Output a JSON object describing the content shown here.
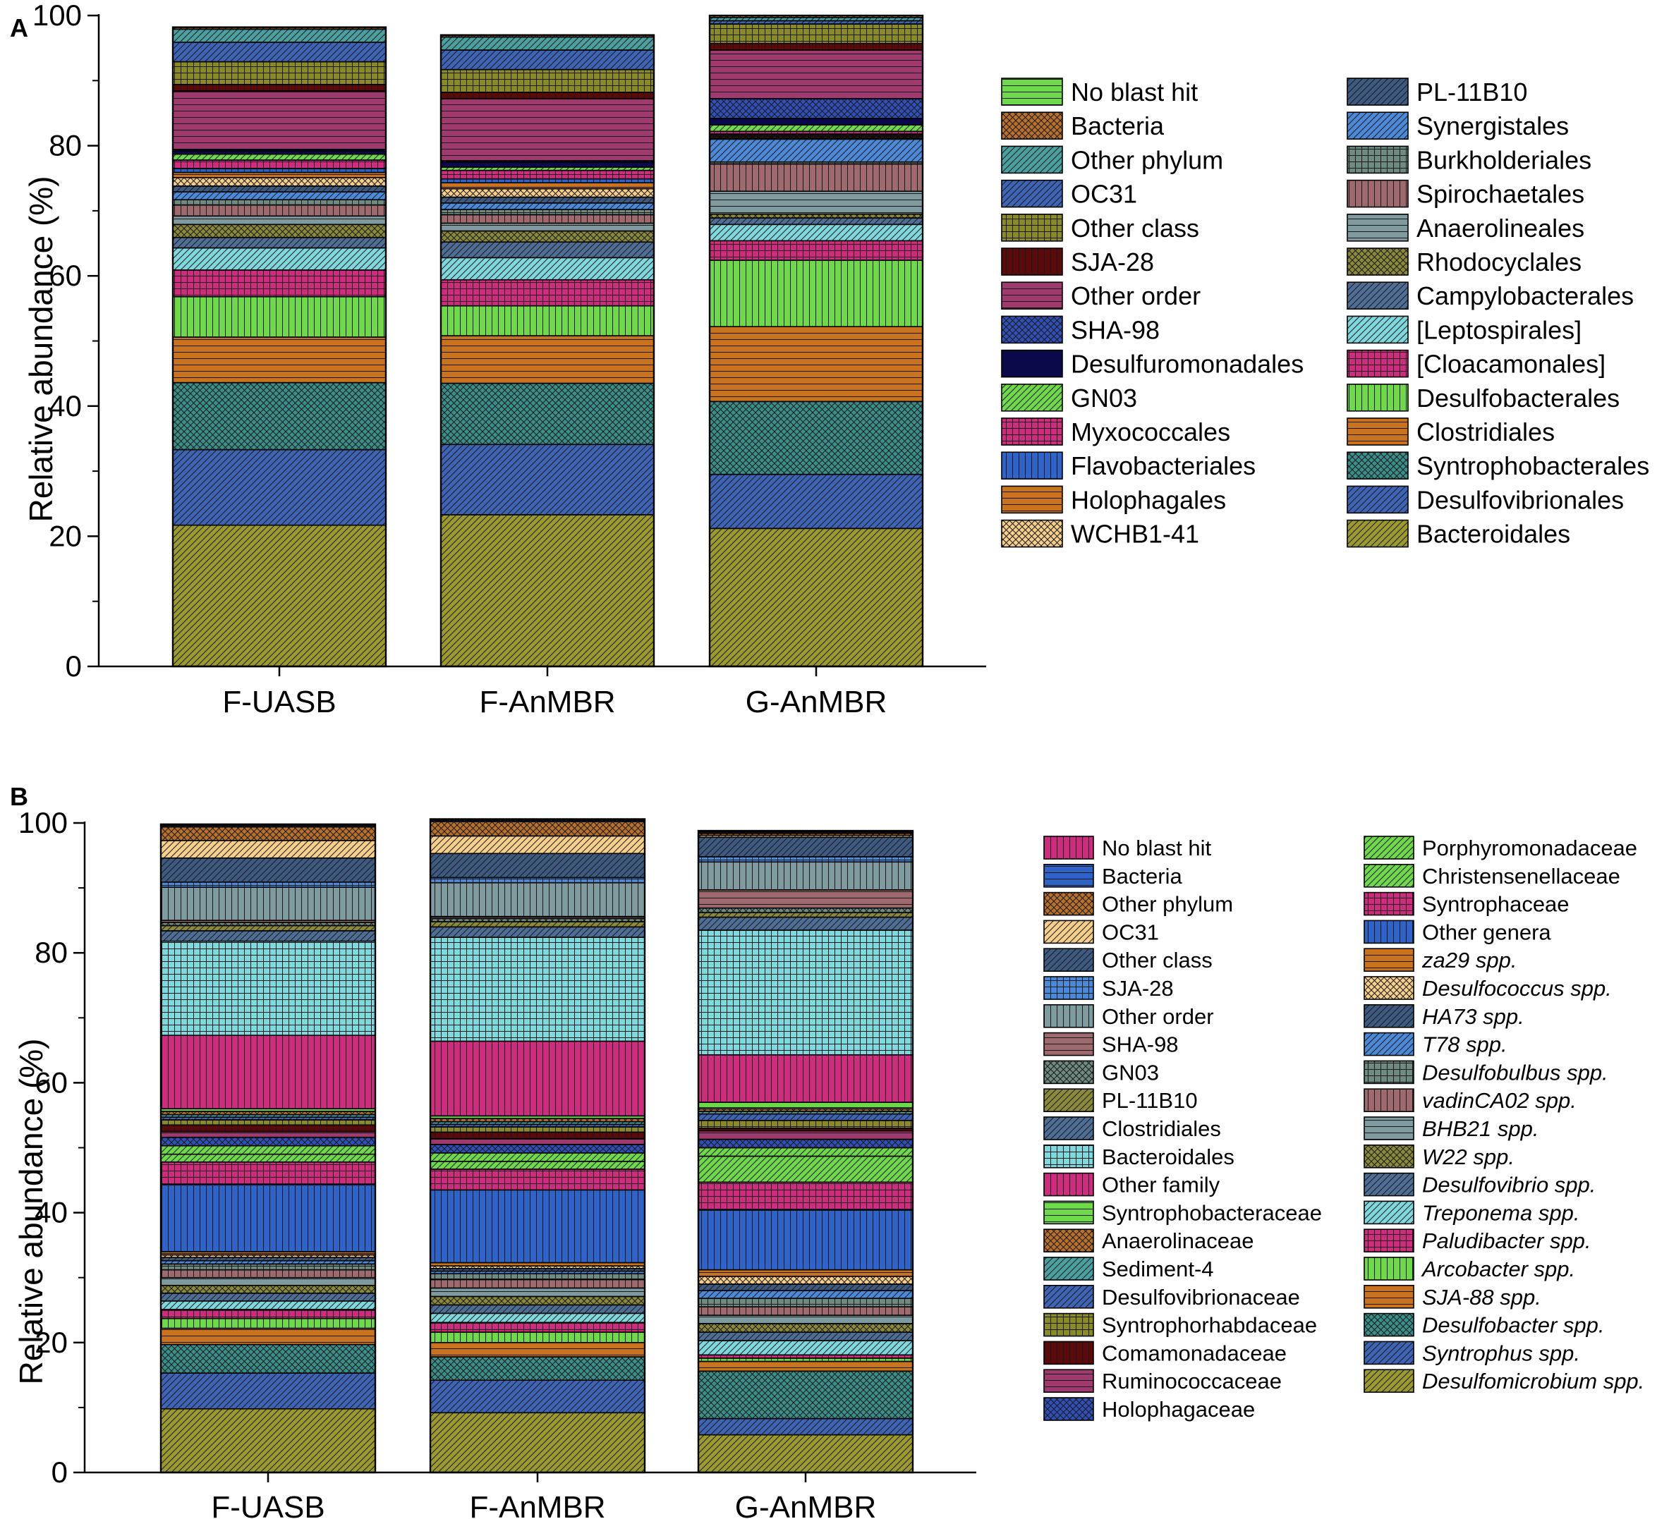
{
  "chart_data": [
    {
      "panel": "A",
      "type": "bar",
      "stacked": true,
      "ylabel": "Relative abundance (%)",
      "ylim": [
        0,
        100
      ],
      "yticks": [
        0,
        20,
        40,
        60,
        80,
        100
      ],
      "categories": [
        "F-UASB",
        "F-AnMBR",
        "G-AnMBR"
      ],
      "legend_position": "right",
      "series": [
        {
          "name": "Bacteroidales",
          "color": "#9c9a2e",
          "pattern": "diag",
          "values": [
            21.7,
            23.3,
            21.2
          ]
        },
        {
          "name": "Desulfovibrionales",
          "color": "#3f64b5",
          "pattern": "diag",
          "values": [
            11.6,
            10.8,
            8.3
          ]
        },
        {
          "name": "Syntrophobacterales",
          "color": "#3a8f8a",
          "pattern": "cross",
          "values": [
            10.3,
            9.4,
            11.2
          ]
        },
        {
          "name": "Clostridiales",
          "color": "#c9731f",
          "pattern": "hline",
          "values": [
            7.0,
            7.3,
            11.5
          ]
        },
        {
          "name": "Desulfobacterales",
          "color": "#6fd84b",
          "pattern": "vline",
          "values": [
            6.2,
            4.6,
            10.2
          ]
        },
        {
          "name": "[Cloacamonales]",
          "color": "#cc2d7c",
          "pattern": "grid",
          "values": [
            4.1,
            4.0,
            3.0
          ]
        },
        {
          "name": "[Leptospirales]",
          "color": "#7fd8de",
          "pattern": "diag",
          "values": [
            3.4,
            3.4,
            2.5
          ]
        },
        {
          "name": "Campylobacterales",
          "color": "#4f6e96",
          "pattern": "diag",
          "values": [
            1.6,
            2.4,
            1.0
          ]
        },
        {
          "name": "Rhodocyclales",
          "color": "#8a8a3a",
          "pattern": "cross",
          "values": [
            2.0,
            1.7,
            0.6
          ]
        },
        {
          "name": "Anaerolineales",
          "color": "#7f9ba0",
          "pattern": "hline",
          "values": [
            1.3,
            1.2,
            3.5
          ]
        },
        {
          "name": "Spirochaetales",
          "color": "#9e6a6e",
          "pattern": "vline",
          "values": [
            1.7,
            1.3,
            4.2
          ]
        },
        {
          "name": "Burkholderiales",
          "color": "#6f8a80",
          "pattern": "grid",
          "values": [
            0.8,
            0.8,
            0.3
          ]
        },
        {
          "name": "Synergistales",
          "color": "#4a8ad8",
          "pattern": "diag",
          "values": [
            1.2,
            1.0,
            3.5
          ]
        },
        {
          "name": "PL-11B10",
          "color": "#3f5a80",
          "pattern": "diag",
          "values": [
            0.9,
            0.9,
            0.2
          ]
        },
        {
          "name": "WCHB1-41",
          "color": "#f7cf8a",
          "pattern": "cross",
          "values": [
            1.3,
            1.3,
            0.2
          ]
        },
        {
          "name": "Holophagales",
          "color": "#c9731f",
          "pattern": "hline",
          "values": [
            0.8,
            0.9,
            0.2
          ]
        },
        {
          "name": "Flavobacteriales",
          "color": "#2f63c8",
          "pattern": "vline",
          "values": [
            0.6,
            0.6,
            0.2
          ]
        },
        {
          "name": "Myxococcales",
          "color": "#cc2d7c",
          "pattern": "grid",
          "values": [
            1.3,
            1.3,
            0.4
          ]
        },
        {
          "name": "GN03",
          "color": "#6fd84b",
          "pattern": "diag",
          "values": [
            0.9,
            0.5,
            1.0
          ]
        },
        {
          "name": "Desulfuromonadales",
          "color": "#0a0a4a",
          "pattern": "solid",
          "values": [
            0.5,
            0.8,
            1.0
          ]
        },
        {
          "name": "SHA-98",
          "color": "#3050b8",
          "pattern": "cross",
          "values": [
            0.2,
            0.2,
            3.0
          ]
        },
        {
          "name": "Other order",
          "color": "#9e3a6e",
          "pattern": "hline",
          "values": [
            9.0,
            9.5,
            7.5
          ]
        },
        {
          "name": "SJA-28",
          "color": "#5a0a0a",
          "pattern": "vline",
          "values": [
            1.0,
            1.0,
            1.0
          ]
        },
        {
          "name": "Other class",
          "color": "#8a8a2a",
          "pattern": "grid",
          "values": [
            3.5,
            3.5,
            3.0
          ]
        },
        {
          "name": "OC31",
          "color": "#3f64b5",
          "pattern": "diag",
          "values": [
            3.0,
            3.0,
            0.5
          ]
        },
        {
          "name": "Other phylum",
          "color": "#4aa0a0",
          "pattern": "diag",
          "values": [
            2.0,
            2.0,
            0.5
          ]
        },
        {
          "name": "Bacteria",
          "color": "#b8702a",
          "pattern": "cross",
          "values": [
            0.3,
            0.3,
            0.3
          ]
        },
        {
          "name": "No blast hit",
          "color": "#6fd84b",
          "pattern": "hline",
          "values": [
            0.0,
            0.0,
            0.0
          ]
        }
      ],
      "legend_columns": [
        [
          "No blast hit",
          "Bacteria",
          "Other phylum",
          "OC31",
          "Other class",
          "SJA-28",
          "Other order",
          "SHA-98",
          "Desulfuromonadales",
          "GN03",
          "Myxococcales",
          "Flavobacteriales",
          "Holophagales",
          "WCHB1-41"
        ],
        [
          "PL-11B10",
          "Synergistales",
          "Burkholderiales",
          "Spirochaetales",
          "Anaerolineales",
          "Rhodocyclales",
          "Campylobacterales",
          "[Leptospirales]",
          "[Cloacamonales]",
          "Desulfobacterales",
          "Clostridiales",
          "Syntrophobacterales",
          "Desulfovibrionales",
          "Bacteroidales"
        ]
      ]
    },
    {
      "panel": "B",
      "type": "bar",
      "stacked": true,
      "ylabel": "Relative abundance (%)",
      "ylim": [
        0,
        100
      ],
      "yticks": [
        0,
        20,
        40,
        60,
        80,
        100
      ],
      "categories": [
        "F-UASB",
        "F-AnMBR",
        "G-AnMBR"
      ],
      "legend_position": "right",
      "series": [
        {
          "name": "Desulfomicrobium spp.",
          "color": "#9c9a2e",
          "pattern": "diag",
          "values": [
            9.8,
            9.2,
            5.8
          ]
        },
        {
          "name": "Syntrophus spp.",
          "color": "#3f64b5",
          "pattern": "diag",
          "values": [
            5.5,
            5.0,
            2.5
          ]
        },
        {
          "name": "Desulfobacter spp.",
          "color": "#3a8f8a",
          "pattern": "cross",
          "values": [
            4.4,
            3.6,
            7.3
          ]
        },
        {
          "name": "SJA-88 spp.",
          "color": "#c9731f",
          "pattern": "hline",
          "values": [
            2.5,
            2.2,
            1.5
          ]
        },
        {
          "name": "Arcobacter spp.",
          "color": "#6fd84b",
          "pattern": "vline",
          "values": [
            1.5,
            1.6,
            0.5
          ]
        },
        {
          "name": "Paludibacter spp.",
          "color": "#cc2d7c",
          "pattern": "grid",
          "values": [
            1.4,
            1.5,
            0.5
          ]
        },
        {
          "name": "Treponema spp.",
          "color": "#7fd8de",
          "pattern": "diag",
          "values": [
            1.3,
            1.4,
            2.2
          ]
        },
        {
          "name": "Desulfovibrio spp.",
          "color": "#4f6e96",
          "pattern": "diag",
          "values": [
            1.2,
            1.3,
            1.3
          ]
        },
        {
          "name": "W22 spp.",
          "color": "#8a8a3a",
          "pattern": "cross",
          "values": [
            1.2,
            1.3,
            1.3
          ]
        },
        {
          "name": "BHB21 spp.",
          "color": "#7f9ba0",
          "pattern": "hline",
          "values": [
            1.2,
            1.3,
            1.3
          ]
        },
        {
          "name": "vadinCA02 spp.",
          "color": "#9e6a6e",
          "pattern": "vline",
          "values": [
            1.2,
            1.3,
            1.3
          ]
        },
        {
          "name": "Desulfobulbus spp.",
          "color": "#6f8a80",
          "pattern": "grid",
          "values": [
            0.9,
            0.9,
            1.3
          ]
        },
        {
          "name": "T78 spp.",
          "color": "#4a8ad8",
          "pattern": "diag",
          "values": [
            0.5,
            0.4,
            1.2
          ]
        },
        {
          "name": "HA73 spp.",
          "color": "#3f5a80",
          "pattern": "diag",
          "values": [
            0.5,
            0.4,
            1.0
          ]
        },
        {
          "name": "Desulfococcus spp.",
          "color": "#f7cf8a",
          "pattern": "cross",
          "values": [
            0.4,
            0.4,
            1.2
          ]
        },
        {
          "name": "za29 spp.",
          "color": "#c9731f",
          "pattern": "hline",
          "values": [
            0.5,
            0.5,
            1.0
          ]
        },
        {
          "name": "Other genera",
          "color": "#2f63c8",
          "pattern": "vline",
          "values": [
            10.3,
            11.2,
            9.2
          ]
        },
        {
          "name": "Syntrophaceae",
          "color": "#cc2d7c",
          "pattern": "grid",
          "values": [
            3.5,
            3.2,
            4.3
          ]
        },
        {
          "name": "Christensenellaceae",
          "color": "#6fd84b",
          "pattern": "diag",
          "values": [
            1.2,
            1.2,
            4.0
          ]
        },
        {
          "name": "Porphyromonadaceae",
          "color": "#6fd84b",
          "pattern": "diag",
          "values": [
            1.3,
            1.3,
            1.3
          ]
        },
        {
          "name": "Holophagaceae",
          "color": "#3050b8",
          "pattern": "cross",
          "values": [
            1.3,
            1.3,
            1.3
          ]
        },
        {
          "name": "Ruminococcaceae",
          "color": "#9e3a6e",
          "pattern": "hline",
          "values": [
            0.9,
            0.9,
            1.3
          ]
        },
        {
          "name": "Comamonadaceae",
          "color": "#5a0a0a",
          "pattern": "vline",
          "values": [
            1.0,
            1.0,
            0.4
          ]
        },
        {
          "name": "Syntrophorhabdaceae",
          "color": "#8a8a2a",
          "pattern": "grid",
          "values": [
            0.8,
            0.8,
            1.2
          ]
        },
        {
          "name": "Desulfovibrionaceae",
          "color": "#3f64b5",
          "pattern": "diag",
          "values": [
            0.4,
            0.4,
            1.0
          ]
        },
        {
          "name": "Sediment-4",
          "color": "#4aa0a0",
          "pattern": "diag",
          "values": [
            0.4,
            0.4,
            0.4
          ]
        },
        {
          "name": "Anaerolinaceae",
          "color": "#b8702a",
          "pattern": "cross",
          "values": [
            0.5,
            0.5,
            0.4
          ]
        },
        {
          "name": "Syntrophobacteraceae",
          "color": "#6fd84b",
          "pattern": "hline",
          "values": [
            0.4,
            0.4,
            1.0
          ]
        },
        {
          "name": "Other family",
          "color": "#cc2d7c",
          "pattern": "vline",
          "values": [
            11.3,
            11.5,
            7.3
          ]
        },
        {
          "name": "Bacteroidales",
          "color": "#7fd8de",
          "pattern": "grid",
          "values": [
            14.5,
            16.0,
            19.2
          ]
        },
        {
          "name": "Clostridiales",
          "color": "#4f6e96",
          "pattern": "diag",
          "values": [
            1.6,
            1.6,
            2.0
          ]
        },
        {
          "name": "PL-11B10",
          "color": "#8a8a3a",
          "pattern": "diag",
          "values": [
            0.8,
            0.8,
            0.7
          ]
        },
        {
          "name": "GN03",
          "color": "#6f8a80",
          "pattern": "cross",
          "values": [
            0.5,
            0.5,
            0.7
          ]
        },
        {
          "name": "SHA-98",
          "color": "#9e6a6e",
          "pattern": "hline",
          "values": [
            0.3,
            0.3,
            2.8
          ]
        },
        {
          "name": "Other order",
          "color": "#7f9ba0",
          "pattern": "vline",
          "values": [
            5.1,
            5.2,
            4.3
          ]
        },
        {
          "name": "SJA-28",
          "color": "#4a8ad8",
          "pattern": "grid",
          "values": [
            0.8,
            0.8,
            0.8
          ]
        },
        {
          "name": "Other class",
          "color": "#3f5a80",
          "pattern": "diag",
          "values": [
            3.7,
            3.7,
            3.0
          ]
        },
        {
          "name": "OC31",
          "color": "#f7cf8a",
          "pattern": "diag",
          "values": [
            2.7,
            2.7,
            0.3
          ]
        },
        {
          "name": "Other phylum",
          "color": "#b8702a",
          "pattern": "cross",
          "values": [
            2.1,
            2.2,
            0.3
          ]
        },
        {
          "name": "Bacteria",
          "color": "#2f63c8",
          "pattern": "hline",
          "values": [
            0.2,
            0.2,
            0.2
          ]
        },
        {
          "name": "No blast hit",
          "color": "#cc2d7c",
          "pattern": "vline",
          "values": [
            0.2,
            0.2,
            0.2
          ]
        }
      ],
      "legend_columns": [
        [
          "No blast hit",
          "Bacteria",
          "Other phylum",
          "OC31",
          "Other class",
          "SJA-28",
          "Other order",
          "SHA-98",
          "GN03",
          "PL-11B10",
          "Clostridiales",
          "Bacteroidales",
          "Other family",
          "Syntrophobacteraceae",
          "Anaerolinaceae",
          "Sediment-4",
          "Desulfovibrionaceae",
          "Syntrophorhabdaceae",
          "Comamonadaceae",
          "Ruminococcaceae",
          "Holophagaceae"
        ],
        [
          "Porphyromonadaceae",
          "Christensenellaceae",
          "Syntrophaceae",
          "Other genera",
          "za29 spp.",
          "Desulfococcus spp.",
          "HA73 spp.",
          "T78 spp.",
          "Desulfobulbus spp.",
          "vadinCA02 spp.",
          "BHB21 spp.",
          "W22 spp.",
          "Desulfovibrio spp.",
          "Treponema spp.",
          "Paludibacter spp.",
          "Arcobacter spp.",
          "SJA-88 spp.",
          "Desulfobacter spp.",
          "Syntrophus spp.",
          "Desulfomicrobium spp."
        ]
      ],
      "italic_legend_entries": [
        "za29 spp.",
        "Desulfococcus spp.",
        "HA73 spp.",
        "T78 spp.",
        "Desulfobulbus spp.",
        "vadinCA02 spp.",
        "BHB21 spp.",
        "W22 spp.",
        "Desulfovibrio spp.",
        "Treponema spp.",
        "Paludibacter spp.",
        "Arcobacter spp.",
        "SJA-88 spp.",
        "Desulfobacter spp.",
        "Syntrophus spp.",
        "Desulfomicrobium spp."
      ]
    }
  ]
}
